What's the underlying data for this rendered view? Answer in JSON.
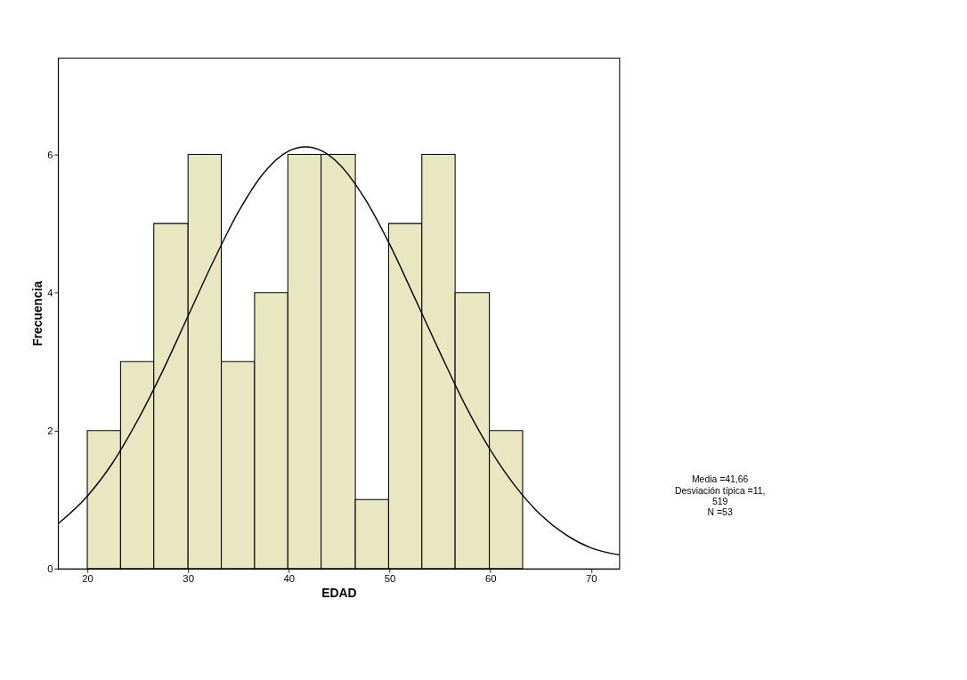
{
  "chart_data": {
    "type": "histogram",
    "xlabel": "EDAD",
    "ylabel": "Frecuencia",
    "bins": [
      20,
      23.3,
      26.6,
      30.0,
      33.3,
      36.6,
      39.9,
      43.2,
      46.6,
      49.9,
      53.2,
      56.5,
      59.9,
      63.2
    ],
    "values": [
      2,
      3,
      5,
      6,
      3,
      4,
      6,
      6,
      1,
      5,
      6,
      4,
      2
    ],
    "color": "#e9e7c1",
    "series": [
      {
        "type": "line",
        "color": "#000000",
        "x": [
          17.1,
          20,
          22.5,
          25,
          27.5,
          30,
          32.5,
          35,
          37.5,
          40,
          41.66,
          43.3,
          45,
          47.5,
          50,
          52.5,
          55,
          57.5,
          60,
          62.5,
          65,
          67.5,
          70,
          72.8
        ],
        "values": [
          0.65,
          1.05,
          1.53,
          2.15,
          2.87,
          3.66,
          4.45,
          5.17,
          5.73,
          6.05,
          6.11,
          6.05,
          5.86,
          5.37,
          4.7,
          3.92,
          3.13,
          2.37,
          1.72,
          1.19,
          0.78,
          0.49,
          0.3,
          0.2
        ]
      }
    ],
    "xlim": [
      17.1,
      72.8
    ],
    "xticks": [
      20,
      30,
      40,
      50,
      60,
      70
    ],
    "ylim": [
      0,
      7.4
    ],
    "yticks": [
      0,
      2,
      4,
      6
    ],
    "grid": false,
    "annotations": [
      "Media =41,66",
      "Desviación típica =11,",
      "519",
      "N =53"
    ]
  }
}
